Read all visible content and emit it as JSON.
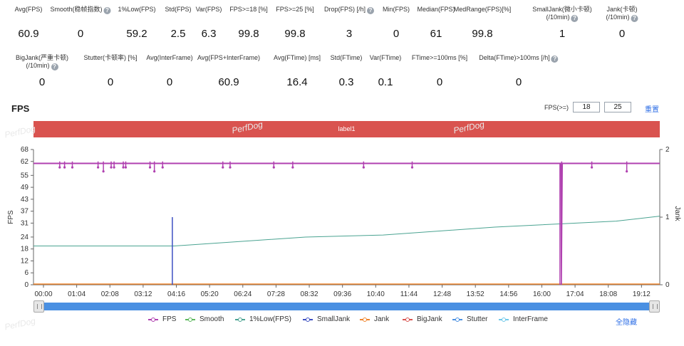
{
  "stats_row1": [
    {
      "label": "Avg(FPS)",
      "value": "60.9",
      "help": false
    },
    {
      "label": "Smooth(稳帧指数)",
      "value": "0",
      "help": true
    },
    {
      "label": "1%Low(FPS)",
      "value": "59.2",
      "help": false
    },
    {
      "label": "Std(FPS)",
      "value": "2.5",
      "help": false
    },
    {
      "label": "Var(FPS)",
      "value": "6.3",
      "help": false
    },
    {
      "label": "FPS>=18 [%]",
      "value": "99.8",
      "help": false
    },
    {
      "label": "FPS>=25 [%]",
      "value": "99.8",
      "help": false
    },
    {
      "label": "Drop(FPS) [/h]",
      "value": "3",
      "help": true
    },
    {
      "label": "Min(FPS)",
      "value": "0",
      "help": false
    },
    {
      "label": "Median(FPS)",
      "value": "61",
      "help": false
    },
    {
      "label": "MedRange(FPS)[%]",
      "value": "99.8",
      "help": false
    },
    {
      "label": "SmallJank(微小卡顿)",
      "label2": "(/10min)",
      "value": "1",
      "help": true
    },
    {
      "label": "Jank(卡顿)",
      "label2": "(/10min)",
      "value": "0",
      "help": true
    }
  ],
  "stats_row2": [
    {
      "label": "BigJank(严重卡顿)",
      "label2": "(/10min)",
      "value": "0",
      "help": true
    },
    {
      "label": "Stutter(卡顿率) [%]",
      "value": "0",
      "help": false
    },
    {
      "label": "Avg(InterFrame)",
      "value": "0",
      "help": false
    },
    {
      "label": "Avg(FPS+InterFrame)",
      "value": "60.9",
      "help": false
    },
    {
      "label": "Avg(FTime) [ms]",
      "value": "16.4",
      "help": false
    },
    {
      "label": "Std(FTime)",
      "value": "0.3",
      "help": false
    },
    {
      "label": "Var(FTime)",
      "value": "0.1",
      "help": false
    },
    {
      "label": "FTime>=100ms [%]",
      "value": "0",
      "help": false
    },
    {
      "label": "Delta(FTime)>100ms [/h]",
      "value": "0",
      "help": true
    }
  ],
  "chart_title": "FPS",
  "threshold": {
    "label": "FPS(>=)",
    "value1": "18",
    "value2": "25",
    "reset_label": "重置"
  },
  "label_bar": "label1",
  "watermark": "PerfDog",
  "hide_all_label": "全隐藏",
  "chart_data": {
    "type": "line",
    "ylabel": "FPS",
    "y2label": "Jank",
    "y_ticks": [
      0,
      6,
      12,
      18,
      24,
      31,
      37,
      43,
      49,
      55,
      62,
      68
    ],
    "y2_ticks": [
      0,
      1,
      2
    ],
    "ylim": [
      0,
      68
    ],
    "y2lim": [
      0,
      2
    ],
    "x_ticks": [
      "00:00",
      "01:04",
      "02:08",
      "03:12",
      "04:16",
      "05:20",
      "06:24",
      "07:28",
      "08:32",
      "09:36",
      "10:40",
      "11:44",
      "12:48",
      "13:52",
      "14:56",
      "16:00",
      "17:04",
      "18:08",
      "19:12"
    ],
    "x_range_seconds": [
      0,
      1230
    ],
    "series": [
      {
        "name": "FPS",
        "color": "#b041b0",
        "points": [
          [
            0,
            61
          ],
          [
            59,
            61
          ],
          [
            60,
            59
          ],
          [
            61,
            61
          ],
          [
            1085,
            61
          ],
          [
            1086,
            0
          ],
          [
            1088,
            61
          ],
          [
            1230,
            61
          ]
        ],
        "markers": [
          [
            50,
            58
          ],
          [
            80,
            58
          ],
          [
            110,
            58
          ],
          [
            230,
            58
          ],
          [
            260,
            58
          ],
          [
            290,
            58
          ],
          [
            310,
            58
          ],
          [
            330,
            58
          ],
          [
            350,
            58
          ],
          [
            410,
            56
          ],
          [
            440,
            58
          ],
          [
            470,
            58
          ],
          [
            530,
            58
          ],
          [
            750,
            58
          ],
          [
            820,
            58
          ],
          [
            960,
            58
          ],
          [
            1040,
            58
          ],
          [
            1230,
            58
          ],
          [
            1180,
            58
          ],
          [
            1440,
            58
          ]
        ]
      },
      {
        "name": "Smooth",
        "color": "#5cb85c"
      },
      {
        "name": "1%Low(FPS)",
        "color": "#4aa391",
        "points": [
          [
            0,
            19.5
          ],
          [
            290,
            19.5
          ],
          [
            560,
            24
          ],
          [
            720,
            25
          ],
          [
            950,
            29
          ],
          [
            1200,
            32
          ],
          [
            1290,
            34.5
          ]
        ]
      },
      {
        "name": "SmallJank",
        "color": "#3d4fc2",
        "spikes": [
          [
            286,
            1
          ],
          [
            1436,
            1
          ]
        ]
      },
      {
        "name": "Jank",
        "color": "#f0852d"
      },
      {
        "name": "BigJank",
        "color": "#d9534f"
      },
      {
        "name": "Stutter",
        "color": "#4a90e2"
      },
      {
        "name": "InterFrame",
        "color": "#6fc8ea"
      }
    ]
  }
}
